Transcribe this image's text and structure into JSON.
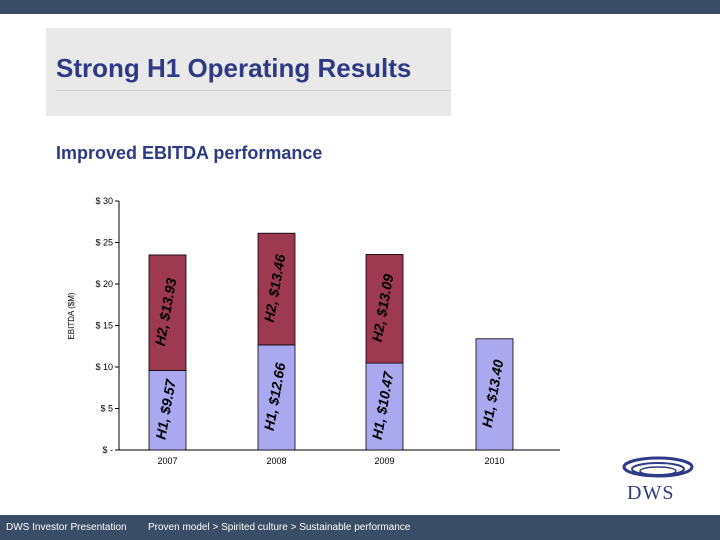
{
  "slide": {
    "title": "Strong H1 Operating Results",
    "subtitle": "Improved EBITDA performance"
  },
  "footer": {
    "left": "DWS Investor Presentation",
    "right": "Proven model > Spirited culture > Sustainable performance"
  },
  "logo": {
    "text": "DWS",
    "icon": "swoosh-logo-icon"
  },
  "colors": {
    "h1": "#aaa9f0",
    "h2": "#9e3952",
    "title": "#2f3a86",
    "bar_dark": "#3a4d66"
  },
  "chart_data": {
    "type": "bar",
    "stacked": true,
    "ylabel": "EBITDA ($M)",
    "xlabel": "",
    "ylim": [
      0,
      30
    ],
    "yticks": [
      0,
      5,
      10,
      15,
      20,
      25,
      30
    ],
    "ytick_labels": [
      "$ -",
      "$ 5",
      "$ 10",
      "$ 15",
      "$ 20",
      "$ 25",
      "$ 30"
    ],
    "categories": [
      "2007",
      "2008",
      "2009",
      "2010"
    ],
    "series": [
      {
        "name": "H1",
        "values": [
          9.57,
          12.66,
          10.47,
          13.4
        ],
        "labels": [
          "H1, $9.57",
          "H1, $12.66",
          "H1, $10.47",
          "H1, $13.40"
        ]
      },
      {
        "name": "H2",
        "values": [
          13.93,
          13.46,
          13.09,
          null
        ],
        "labels": [
          "H2, $13.93",
          "H2, $13.46",
          "H2, $13.09",
          ""
        ]
      }
    ]
  }
}
